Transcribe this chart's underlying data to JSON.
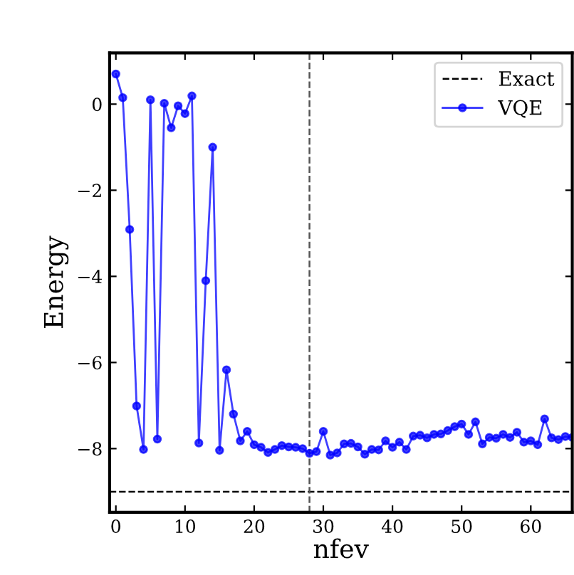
{
  "chart_data": {
    "type": "line",
    "xlabel": "nfev",
    "ylabel": "Energy",
    "x": [
      0,
      1,
      2,
      3,
      4,
      5,
      6,
      7,
      8,
      9,
      10,
      11,
      12,
      13,
      14,
      15,
      16,
      17,
      18,
      19,
      20,
      21,
      22,
      23,
      24,
      25,
      26,
      27,
      28,
      29,
      30,
      31,
      32,
      33,
      34,
      35,
      36,
      37,
      38,
      39,
      40,
      41,
      42,
      43,
      44,
      45,
      46,
      47,
      48,
      49,
      50,
      51,
      52,
      53,
      54,
      55,
      56,
      57,
      58,
      59,
      60,
      61,
      62,
      63,
      64,
      65,
      66
    ],
    "series": [
      {
        "name": "VQE",
        "color": "#0000ff",
        "values": [
          0.7,
          0.15,
          -2.91,
          -7.01,
          -8.02,
          0.1,
          -7.78,
          0.02,
          -0.55,
          -0.04,
          -0.22,
          0.19,
          -7.87,
          -4.1,
          -1.0,
          -8.04,
          -6.17,
          -7.2,
          -7.82,
          -7.6,
          -7.91,
          -7.97,
          -8.09,
          -8.02,
          -7.93,
          -7.96,
          -7.97,
          -8.0,
          -8.11,
          -8.07,
          -7.6,
          -8.15,
          -8.1,
          -7.89,
          -7.88,
          -7.96,
          -8.13,
          -8.02,
          -8.03,
          -7.82,
          -7.97,
          -7.85,
          -8.02,
          -7.71,
          -7.69,
          -7.75,
          -7.67,
          -7.66,
          -7.58,
          -7.49,
          -7.43,
          -7.67,
          -7.38,
          -7.89,
          -7.74,
          -7.76,
          -7.67,
          -7.74,
          -7.62,
          -7.85,
          -7.82,
          -7.91,
          -7.31,
          -7.75,
          -7.79,
          -7.72,
          -7.74
        ]
      }
    ],
    "ref_lines": [
      {
        "axis": "y",
        "value": -9,
        "label": "Exact",
        "color": "#000000",
        "line_style": "dashed"
      },
      {
        "axis": "x",
        "value": 28,
        "label": null,
        "color": "#555555",
        "line_style": "dashed"
      }
    ],
    "xlim": [
      -0.9,
      66
    ],
    "ylim": [
      -9.48,
      1.19
    ],
    "xticks": [
      0,
      10,
      20,
      30,
      40,
      50,
      60
    ],
    "yticks": [
      {
        "value": 0,
        "label": "0"
      },
      {
        "value": -2,
        "label": "−2"
      },
      {
        "value": -4,
        "label": "−4"
      },
      {
        "value": -6,
        "label": "−6"
      },
      {
        "value": -8,
        "label": "−8"
      }
    ],
    "marker": "circle",
    "line_style": "solid",
    "legend": "top right",
    "grid": false
  }
}
